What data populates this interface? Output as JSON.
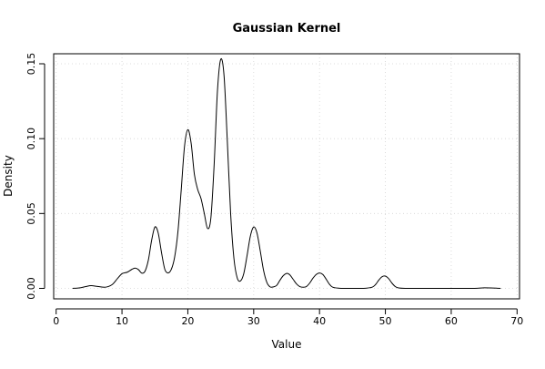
{
  "chart_data": {
    "type": "line",
    "title": "Gaussian Kernel",
    "xlabel": "Value",
    "ylabel": "Density",
    "xlim": [
      0,
      70
    ],
    "ylim": [
      0,
      0.15
    ],
    "x_ticks": [
      0,
      10,
      20,
      30,
      40,
      50,
      60,
      70
    ],
    "y_ticks": [
      0.0,
      0.05,
      0.1,
      0.15
    ],
    "x_tick_labels": [
      "0",
      "10",
      "20",
      "30",
      "40",
      "50",
      "60",
      "70"
    ],
    "y_tick_labels": [
      "0.00",
      "0.05",
      "0.10",
      "0.15"
    ],
    "grid": true,
    "line_color": "#000000",
    "grid_color": "#d3d3d3",
    "series": [
      {
        "x": [
          2.5,
          3.5,
          4.5,
          5.3,
          6.3,
          7.5,
          8.5,
          9.3,
          10.0,
          10.8,
          11.5,
          12.0,
          12.5,
          13.0,
          13.5,
          14.0,
          14.5,
          15.0,
          15.5,
          16.0,
          16.5,
          17.0,
          17.5,
          18.0,
          18.5,
          19.0,
          19.5,
          20.0,
          20.5,
          21.0,
          21.5,
          22.0,
          22.5,
          23.0,
          23.5,
          24.0,
          24.5,
          25.0,
          25.5,
          26.0,
          26.5,
          27.0,
          27.5,
          28.0,
          28.5,
          29.0,
          29.5,
          30.0,
          30.5,
          31.0,
          31.5,
          32.0,
          32.5,
          33.0,
          33.5,
          34.0,
          34.5,
          35.0,
          35.5,
          36.0,
          36.5,
          37.0,
          37.5,
          38.0,
          38.5,
          39.0,
          39.5,
          40.0,
          40.5,
          41.0,
          41.5,
          42.0,
          43.0,
          44.0,
          45.0,
          46.0,
          47.0,
          48.0,
          48.5,
          49.0,
          49.5,
          50.0,
          50.5,
          51.0,
          51.5,
          52.0,
          53.0,
          55.0,
          58.0,
          61.0,
          63.0,
          64.0,
          65.0,
          66.0,
          67.0,
          67.5
        ],
        "y": [
          0.0,
          0.0003,
          0.0012,
          0.0018,
          0.0013,
          0.0008,
          0.0025,
          0.0065,
          0.0098,
          0.0108,
          0.0127,
          0.0135,
          0.0125,
          0.0102,
          0.0115,
          0.0188,
          0.032,
          0.041,
          0.037,
          0.024,
          0.0128,
          0.0103,
          0.0128,
          0.021,
          0.038,
          0.066,
          0.095,
          0.106,
          0.097,
          0.076,
          0.066,
          0.06,
          0.05,
          0.04,
          0.047,
          0.083,
          0.132,
          0.153,
          0.142,
          0.098,
          0.05,
          0.02,
          0.007,
          0.005,
          0.01,
          0.022,
          0.035,
          0.041,
          0.037,
          0.025,
          0.012,
          0.004,
          0.001,
          0.001,
          0.002,
          0.0055,
          0.0085,
          0.01,
          0.009,
          0.006,
          0.003,
          0.0012,
          0.0008,
          0.0012,
          0.0035,
          0.0068,
          0.0093,
          0.0103,
          0.0093,
          0.0062,
          0.0028,
          0.0008,
          0.0001,
          0.0,
          0.0,
          0.0,
          0.0001,
          0.0008,
          0.0025,
          0.0055,
          0.0078,
          0.0082,
          0.0065,
          0.0035,
          0.0012,
          0.0003,
          0.0,
          0.0,
          0.0,
          0.0,
          0.0,
          0.0001,
          0.0004,
          0.0003,
          0.0001,
          0.0
        ]
      }
    ]
  }
}
